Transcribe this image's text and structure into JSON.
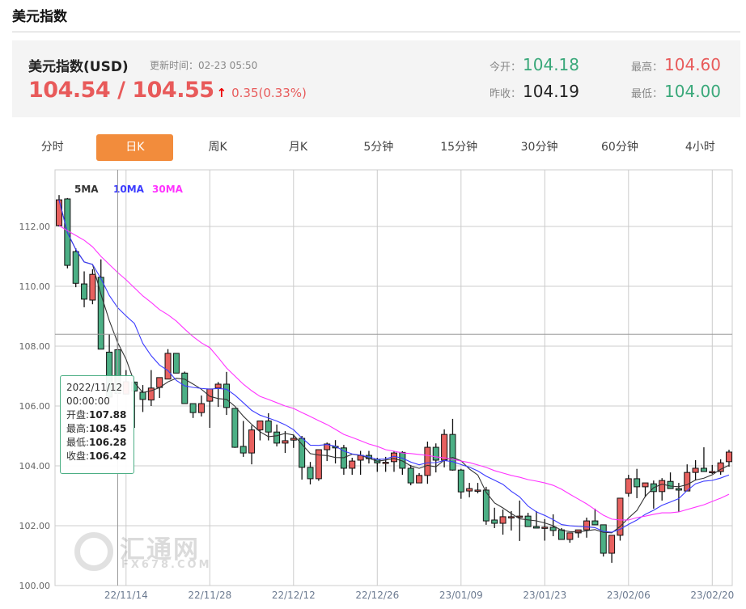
{
  "header": {
    "title": "美元指数"
  },
  "quote": {
    "name": "美元指数(USD)",
    "update_time": "更新时间：02-23 05:50",
    "price": "104.54 / 104.55",
    "direction_icon": "up-arrow",
    "change": "0.35(0.33%)",
    "open_label": "今开：",
    "open": "104.18",
    "prev_close_label": "昨收：",
    "prev_close": "104.19",
    "high_label": "最高：",
    "high": "104.60",
    "low_label": "最低：",
    "low": "104.00",
    "colors": {
      "up": "#e85a5a",
      "down": "#3aa87a",
      "accent": "#f28c3c"
    }
  },
  "tabs": [
    {
      "label": "分时"
    },
    {
      "label": "日K",
      "active": true
    },
    {
      "label": "周K"
    },
    {
      "label": "月K"
    },
    {
      "label": "5分钟"
    },
    {
      "label": "15分钟"
    },
    {
      "label": "30分钟"
    },
    {
      "label": "60分钟"
    },
    {
      "label": "4小时"
    }
  ],
  "tooltip": {
    "date": "2022/11/12",
    "time": "00:00:00",
    "open_label": "开盘:",
    "open": "107.88",
    "high_label": "最高:",
    "high": "108.45",
    "low_label": "最低:",
    "low": "106.28",
    "close_label": "收盘:",
    "close": "106.42"
  },
  "watermark": {
    "text": "汇通网",
    "sub": "FX678.COM"
  },
  "chart_data": {
    "type": "candlestick",
    "legend": [
      {
        "name": "5MA",
        "color": "#333333"
      },
      {
        "name": "10MA",
        "color": "#3b3bff"
      },
      {
        "name": "30MA",
        "color": "#ff33ff"
      }
    ],
    "ylim": [
      100,
      113.9
    ],
    "y_ticks": [
      "100.00",
      "102.00",
      "104.00",
      "106.00",
      "108.00",
      "110.00",
      "112.00"
    ],
    "x_ticks": [
      {
        "label": "22/11/14",
        "index": 8
      },
      {
        "label": "22/11/28",
        "index": 18
      },
      {
        "label": "22/12/12",
        "index": 28
      },
      {
        "label": "22/12/26",
        "index": 38
      },
      {
        "label": "23/01/09",
        "index": 48
      },
      {
        "label": "23/01/23",
        "index": 58
      },
      {
        "label": "23/02/06",
        "index": 68
      },
      {
        "label": "23/02/20",
        "index": 78
      }
    ],
    "up_color": "#e8615f",
    "down_color": "#4caf85",
    "crosshair": {
      "index": 7,
      "price": 108.4
    },
    "ohlc": [
      [
        112.03,
        113.05,
        112.0,
        112.89
      ],
      [
        112.92,
        112.95,
        110.6,
        110.7
      ],
      [
        111.16,
        111.27,
        109.97,
        110.1
      ],
      [
        110.08,
        110.5,
        109.3,
        109.57
      ],
      [
        109.54,
        110.57,
        109.4,
        110.4
      ],
      [
        110.3,
        110.9,
        107.9,
        107.9
      ],
      [
        107.8,
        108.4,
        106.24,
        106.3
      ],
      [
        107.88,
        108.45,
        106.28,
        106.42
      ],
      [
        106.4,
        107.2,
        106.4,
        106.81
      ],
      [
        106.8,
        106.8,
        105.27,
        106.5
      ],
      [
        106.46,
        106.7,
        105.8,
        106.22
      ],
      [
        106.2,
        107.2,
        106.0,
        106.6
      ],
      [
        106.62,
        106.95,
        106.27,
        106.95
      ],
      [
        106.9,
        107.9,
        106.9,
        107.76
      ],
      [
        107.76,
        107.76,
        107.1,
        107.1
      ],
      [
        107.1,
        107.15,
        106.08,
        106.08
      ],
      [
        106.08,
        106.08,
        105.6,
        105.78
      ],
      [
        105.78,
        106.35,
        105.65,
        106.08
      ],
      [
        106.16,
        106.57,
        105.27,
        106.57
      ],
      [
        106.6,
        106.8,
        105.97,
        106.73
      ],
      [
        106.73,
        107.14,
        105.7,
        105.95
      ],
      [
        105.92,
        105.92,
        104.6,
        104.62
      ],
      [
        104.65,
        105.5,
        104.3,
        104.43
      ],
      [
        104.43,
        105.35,
        104.05,
        105.2
      ],
      [
        105.2,
        105.5,
        104.85,
        105.5
      ],
      [
        105.5,
        105.76,
        104.85,
        105.13
      ],
      [
        105.13,
        105.38,
        104.65,
        104.76
      ],
      [
        104.76,
        105.16,
        104.43,
        104.84
      ],
      [
        104.86,
        105.05,
        104.6,
        104.92
      ],
      [
        104.92,
        105.0,
        103.54,
        103.95
      ],
      [
        103.95,
        104.13,
        103.38,
        103.57
      ],
      [
        103.57,
        104.54,
        103.5,
        104.54
      ],
      [
        104.54,
        104.78,
        104.16,
        104.73
      ],
      [
        104.65,
        104.86,
        104.08,
        104.6
      ],
      [
        104.6,
        104.7,
        103.7,
        103.92
      ],
      [
        103.92,
        104.27,
        103.7,
        104.16
      ],
      [
        104.19,
        104.5,
        103.7,
        104.35
      ],
      [
        104.35,
        104.5,
        104.08,
        104.24
      ],
      [
        104.22,
        104.27,
        103.8,
        104.1
      ],
      [
        104.1,
        104.3,
        103.8,
        104.12
      ],
      [
        104.14,
        104.49,
        103.8,
        104.43
      ],
      [
        104.45,
        104.49,
        103.7,
        103.92
      ],
      [
        103.92,
        104.03,
        103.35,
        103.43
      ],
      [
        103.43,
        103.76,
        103.43,
        103.68
      ],
      [
        103.68,
        104.81,
        103.4,
        104.62
      ],
      [
        104.62,
        104.75,
        103.78,
        104.19
      ],
      [
        104.19,
        105.22,
        103.95,
        105.05
      ],
      [
        105.05,
        105.57,
        103.84,
        103.86
      ],
      [
        103.86,
        103.9,
        102.9,
        103.13
      ],
      [
        103.16,
        103.43,
        102.95,
        103.24
      ],
      [
        103.19,
        103.43,
        103.08,
        103.19
      ],
      [
        103.19,
        103.3,
        102.03,
        102.16
      ],
      [
        102.19,
        102.6,
        101.92,
        102.08
      ],
      [
        102.08,
        102.54,
        101.7,
        102.3
      ],
      [
        102.3,
        102.49,
        101.84,
        102.3
      ],
      [
        102.32,
        102.84,
        101.49,
        102.32
      ],
      [
        102.32,
        102.43,
        101.97,
        101.97
      ],
      [
        101.97,
        102.49,
        101.92,
        101.92
      ],
      [
        101.92,
        102.22,
        101.5,
        101.95
      ],
      [
        101.95,
        102.38,
        101.65,
        101.84
      ],
      [
        101.86,
        101.92,
        101.54,
        101.54
      ],
      [
        101.54,
        101.76,
        101.43,
        101.76
      ],
      [
        101.76,
        101.86,
        101.6,
        101.86
      ],
      [
        101.86,
        102.27,
        101.6,
        102.16
      ],
      [
        102.16,
        102.57,
        102.03,
        102.03
      ],
      [
        102.03,
        102.03,
        100.97,
        101.08
      ],
      [
        101.08,
        101.68,
        100.76,
        101.68
      ],
      [
        101.68,
        102.92,
        101.5,
        102.92
      ],
      [
        103.08,
        103.7,
        102.97,
        103.57
      ],
      [
        103.57,
        103.9,
        102.92,
        103.3
      ],
      [
        103.3,
        103.43,
        102.95,
        103.43
      ],
      [
        103.4,
        103.51,
        102.57,
        103.14
      ],
      [
        103.14,
        103.59,
        102.84,
        103.51
      ],
      [
        103.48,
        103.78,
        103.24,
        103.24
      ],
      [
        103.24,
        103.43,
        102.46,
        103.19
      ],
      [
        103.16,
        104.05,
        103.16,
        103.78
      ],
      [
        103.78,
        104.19,
        103.51,
        103.92
      ],
      [
        103.92,
        104.62,
        103.81,
        103.81
      ],
      [
        103.81,
        104.03,
        103.73,
        103.81
      ],
      [
        103.81,
        104.22,
        103.7,
        104.1
      ],
      [
        104.14,
        104.54,
        103.97,
        104.46
      ]
    ],
    "ma30": [
      112.03,
      111.86,
      111.7,
      111.54,
      111.32,
      111.0,
      110.73,
      110.46,
      110.22,
      109.95,
      109.68,
      109.46,
      109.22,
      109.05,
      108.84,
      108.57,
      108.32,
      108.11,
      107.95,
      107.62,
      107.27,
      107.0,
      106.73,
      106.51,
      106.32,
      106.22,
      106.11,
      106.0,
      105.92,
      105.78,
      105.65,
      105.51,
      105.38,
      105.22,
      105.05,
      104.95,
      104.84,
      104.73,
      104.65,
      104.54,
      104.49,
      104.43,
      104.41,
      104.38,
      104.35,
      104.3,
      104.27,
      104.22,
      104.16,
      104.11,
      104.03,
      103.95,
      103.84,
      103.76,
      103.68,
      103.62,
      103.54,
      103.49,
      103.43,
      103.35,
      103.22,
      103.05,
      102.89,
      102.73,
      102.54,
      102.35,
      102.22,
      102.19,
      102.19,
      102.27,
      102.32,
      102.38,
      102.43,
      102.43,
      102.46,
      102.54,
      102.62,
      102.7,
      102.81,
      102.92,
      103.05
    ]
  }
}
